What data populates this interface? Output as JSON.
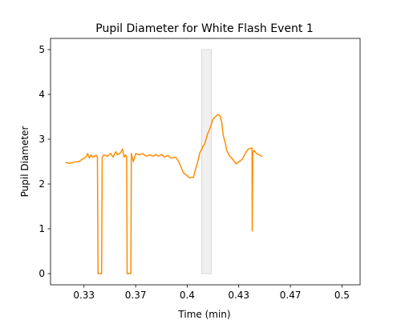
{
  "chart_data": {
    "type": "line",
    "title": "Pupil Diameter for White Flash Event 1",
    "xlabel": "Time (min)",
    "ylabel": "Pupil Diameter",
    "xlim": [
      0.3117,
      0.5117
    ],
    "ylim": [
      -0.25,
      5.25
    ],
    "x_ticks": [
      0.3333,
      0.3667,
      0.4,
      0.4333,
      0.4667,
      0.5
    ],
    "x_tick_labels": [
      "0.33",
      "0.37",
      "0.4",
      "0.43",
      "0.47",
      "0.5"
    ],
    "y_ticks": [
      0,
      1,
      2,
      3,
      4,
      5
    ],
    "y_tick_labels": [
      "0",
      "1",
      "2",
      "3",
      "4",
      "5"
    ],
    "grid": false,
    "legend": "none",
    "flash_interval": {
      "x_start": 0.4094,
      "x_end": 0.4156,
      "y_bottom": 0,
      "y_top": 5,
      "fill": "#f0f0f0",
      "stroke": "#d8d8d8"
    },
    "series": [
      {
        "color": "#ff8c00",
        "points": [
          [
            0.3217,
            2.48
          ],
          [
            0.324,
            2.46
          ],
          [
            0.327,
            2.49
          ],
          [
            0.33,
            2.5
          ],
          [
            0.3325,
            2.56
          ],
          [
            0.3345,
            2.6
          ],
          [
            0.3357,
            2.68
          ],
          [
            0.3368,
            2.58
          ],
          [
            0.338,
            2.65
          ],
          [
            0.339,
            2.6
          ],
          [
            0.3412,
            2.64
          ],
          [
            0.342,
            2.6
          ],
          [
            0.3424,
            0.0
          ],
          [
            0.3447,
            0.0
          ],
          [
            0.3451,
            2.6
          ],
          [
            0.3462,
            2.65
          ],
          [
            0.3485,
            2.62
          ],
          [
            0.3505,
            2.68
          ],
          [
            0.352,
            2.6
          ],
          [
            0.3538,
            2.72
          ],
          [
            0.355,
            2.65
          ],
          [
            0.357,
            2.7
          ],
          [
            0.3582,
            2.78
          ],
          [
            0.3592,
            2.6
          ],
          [
            0.3602,
            2.65
          ],
          [
            0.3609,
            2.6
          ],
          [
            0.3612,
            0.0
          ],
          [
            0.3636,
            0.0
          ],
          [
            0.3639,
            2.68
          ],
          [
            0.3652,
            2.5
          ],
          [
            0.3668,
            2.68
          ],
          [
            0.369,
            2.65
          ],
          [
            0.3712,
            2.68
          ],
          [
            0.3735,
            2.62
          ],
          [
            0.3758,
            2.65
          ],
          [
            0.378,
            2.62
          ],
          [
            0.3795,
            2.66
          ],
          [
            0.3815,
            2.62
          ],
          [
            0.3835,
            2.66
          ],
          [
            0.3855,
            2.6
          ],
          [
            0.3875,
            2.64
          ],
          [
            0.3895,
            2.58
          ],
          [
            0.3925,
            2.6
          ],
          [
            0.3945,
            2.5
          ],
          [
            0.396,
            2.38
          ],
          [
            0.3975,
            2.25
          ],
          [
            0.3995,
            2.2
          ],
          [
            0.4015,
            2.14
          ],
          [
            0.404,
            2.15
          ],
          [
            0.4058,
            2.38
          ],
          [
            0.4072,
            2.55
          ],
          [
            0.4082,
            2.7
          ],
          [
            0.4097,
            2.8
          ],
          [
            0.4102,
            2.85
          ],
          [
            0.4112,
            2.88
          ],
          [
            0.4122,
            3.0
          ],
          [
            0.4132,
            3.12
          ],
          [
            0.4148,
            3.25
          ],
          [
            0.4162,
            3.4
          ],
          [
            0.4167,
            3.45
          ],
          [
            0.4182,
            3.5
          ],
          [
            0.4197,
            3.55
          ],
          [
            0.4212,
            3.52
          ],
          [
            0.4223,
            3.38
          ],
          [
            0.4232,
            3.1
          ],
          [
            0.4247,
            2.9
          ],
          [
            0.4255,
            2.75
          ],
          [
            0.4275,
            2.62
          ],
          [
            0.4295,
            2.55
          ],
          [
            0.4315,
            2.45
          ],
          [
            0.4335,
            2.5
          ],
          [
            0.4355,
            2.55
          ],
          [
            0.4378,
            2.7
          ],
          [
            0.4395,
            2.78
          ],
          [
            0.4412,
            2.8
          ],
          [
            0.4419,
            2.8
          ],
          [
            0.442,
            0.95
          ],
          [
            0.4424,
            2.7
          ],
          [
            0.4432,
            2.75
          ],
          [
            0.4448,
            2.68
          ],
          [
            0.4465,
            2.65
          ],
          [
            0.4482,
            2.62
          ]
        ]
      }
    ]
  }
}
